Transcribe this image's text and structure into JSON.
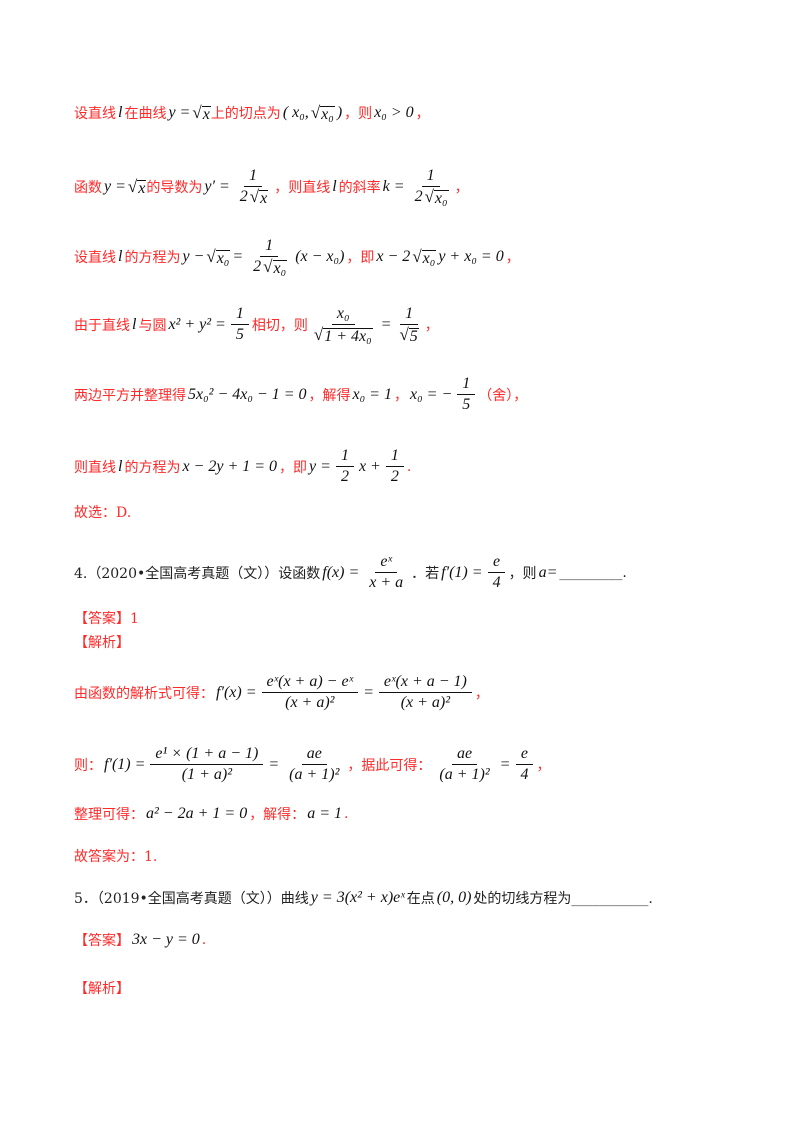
{
  "colors": {
    "solution": "#ff2a2a",
    "question": "#222222"
  },
  "lines": [
    {
      "c": "red",
      "s": [
        {
          "t": "设直线"
        },
        {
          "m": "l"
        },
        {
          "t": "在曲线"
        },
        {
          "m": "y = "
        },
        {
          "sq": "x"
        },
        {
          "t": "上的切点为"
        },
        {
          "m": "("
        },
        {
          "m": "x₀,"
        },
        {
          "sq": "x₀"
        },
        {
          "m": ")"
        },
        {
          "t": "，则"
        },
        {
          "m": "x₀ > 0"
        },
        {
          "t": "，"
        }
      ]
    },
    {
      "c": "red",
      "s": [
        {
          "t": "函数"
        },
        {
          "m": "y = "
        },
        {
          "sq": "x"
        },
        {
          "t": "的导数为"
        },
        {
          "m": "y′ ="
        },
        {
          "fr": [
            [
              {
                "m": "1"
              }
            ],
            [
              {
                "m": "2"
              },
              {
                "sq": "x"
              }
            ]
          ]
        },
        {
          "t": "，则直线"
        },
        {
          "m": "l"
        },
        {
          "t": "的斜率"
        },
        {
          "m": "k ="
        },
        {
          "fr": [
            [
              {
                "m": "1"
              }
            ],
            [
              {
                "m": "2"
              },
              {
                "sq": "x₀"
              }
            ]
          ]
        },
        {
          "t": "，"
        }
      ]
    },
    {
      "c": "red",
      "s": [
        {
          "t": "设直线"
        },
        {
          "m": "l"
        },
        {
          "t": "的方程为"
        },
        {
          "m": "y −"
        },
        {
          "sq": "x₀"
        },
        {
          "m": "="
        },
        {
          "fr": [
            [
              {
                "m": "1"
              }
            ],
            [
              {
                "m": "2"
              },
              {
                "sq": "x₀"
              }
            ]
          ]
        },
        {
          "m": "(x − x₀)"
        },
        {
          "t": "，即"
        },
        {
          "m": "x − 2"
        },
        {
          "sq": "x₀"
        },
        {
          "m": "y + x₀ = 0"
        },
        {
          "t": "，"
        }
      ]
    },
    {
      "c": "red",
      "s": [
        {
          "t": "由于直线"
        },
        {
          "m": "l"
        },
        {
          "t": "与圆"
        },
        {
          "m": "x² + y² ="
        },
        {
          "fr": [
            [
              {
                "m": "1"
              }
            ],
            [
              {
                "m": "5"
              }
            ]
          ]
        },
        {
          "t": "相切，则"
        },
        {
          "fr": [
            [
              {
                "m": "x₀"
              }
            ],
            [
              {
                "sq": "1 + 4x₀"
              }
            ]
          ]
        },
        {
          "m": "="
        },
        {
          "fr": [
            [
              {
                "m": "1"
              }
            ],
            [
              {
                "sq": "5"
              }
            ]
          ]
        },
        {
          "t": "，"
        }
      ]
    },
    {
      "c": "red",
      "s": [
        {
          "t": "两边平方并整理得"
        },
        {
          "m": "5x₀² − 4x₀ − 1 = 0"
        },
        {
          "t": "，解得"
        },
        {
          "m": "x₀ = 1"
        },
        {
          "t": "，"
        },
        {
          "m": "x₀ = −"
        },
        {
          "fr": [
            [
              {
                "m": "1"
              }
            ],
            [
              {
                "m": "5"
              }
            ]
          ]
        },
        {
          "t": "（舍），"
        }
      ]
    },
    {
      "c": "red",
      "s": [
        {
          "t": "则直线"
        },
        {
          "m": "l"
        },
        {
          "t": "的方程为"
        },
        {
          "m": "x − 2y + 1 = 0"
        },
        {
          "t": "，即"
        },
        {
          "m": "y ="
        },
        {
          "fr": [
            [
              {
                "m": "1"
              }
            ],
            [
              {
                "m": "2"
              }
            ]
          ]
        },
        {
          "m": "x +"
        },
        {
          "fr": [
            [
              {
                "m": "1"
              }
            ],
            [
              {
                "m": "2"
              }
            ]
          ]
        },
        {
          "t": "."
        }
      ]
    },
    {
      "c": "red",
      "s": [
        {
          "t": "故选：D."
        }
      ]
    },
    {
      "c": "black",
      "s": [
        {
          "t": "4.（2020•全国高考真题（文））设函数"
        },
        {
          "m": "f(x) ="
        },
        {
          "fr": [
            [
              {
                "m": "eˣ"
              }
            ],
            [
              {
                "m": "x + a"
              }
            ]
          ]
        },
        {
          "t": "．若"
        },
        {
          "m": "f′(1) ="
        },
        {
          "fr": [
            [
              {
                "m": "e"
              }
            ],
            [
              {
                "m": "4"
              }
            ]
          ]
        },
        {
          "t": "，则"
        },
        {
          "m": "a="
        },
        {
          "t": "_________."
        }
      ]
    },
    {
      "c": "red",
      "s": [
        {
          "t": "【答案】1"
        }
      ]
    },
    {
      "c": "red",
      "s": [
        {
          "t": "【解析】"
        }
      ]
    },
    {
      "c": "red",
      "s": [
        {
          "t": "由函数的解析式可得："
        },
        {
          "m": "f′(x) ="
        },
        {
          "fr": [
            [
              {
                "m": "eˣ(x + a) − eˣ"
              }
            ],
            [
              {
                "m": "(x + a)²"
              }
            ]
          ]
        },
        {
          "m": "="
        },
        {
          "fr": [
            [
              {
                "m": "eˣ(x + a − 1)"
              }
            ],
            [
              {
                "m": "(x + a)²"
              }
            ]
          ]
        },
        {
          "t": "，"
        }
      ]
    },
    {
      "c": "red",
      "s": [
        {
          "t": "则："
        },
        {
          "m": "f′(1) ="
        },
        {
          "fr": [
            [
              {
                "m": "e¹ × (1 + a − 1)"
              }
            ],
            [
              {
                "m": "(1 + a)²"
              }
            ]
          ]
        },
        {
          "m": "="
        },
        {
          "fr": [
            [
              {
                "m": "ae"
              }
            ],
            [
              {
                "m": "(a + 1)²"
              }
            ]
          ]
        },
        {
          "t": "，据此可得："
        },
        {
          "fr": [
            [
              {
                "m": "ae"
              }
            ],
            [
              {
                "m": "(a + 1)²"
              }
            ]
          ]
        },
        {
          "m": "="
        },
        {
          "fr": [
            [
              {
                "m": "e"
              }
            ],
            [
              {
                "m": "4"
              }
            ]
          ]
        },
        {
          "t": "，"
        }
      ]
    },
    {
      "c": "red",
      "s": [
        {
          "t": "整理可得："
        },
        {
          "m": "a² − 2a + 1 = 0"
        },
        {
          "t": "，解得："
        },
        {
          "m": "a = 1"
        },
        {
          "t": "."
        }
      ]
    },
    {
      "c": "red",
      "s": [
        {
          "t": "故答案为：1."
        }
      ]
    },
    {
      "c": "black",
      "s": [
        {
          "t": "5．（2019•全国高考真题（文））曲线"
        },
        {
          "m": "y = 3(x² + x)eˣ"
        },
        {
          "t": "在点"
        },
        {
          "m": "(0, 0)"
        },
        {
          "t": "处的切线方程为___________."
        }
      ]
    },
    {
      "c": "red",
      "s": [
        {
          "t": "【答案】"
        },
        {
          "m": "3x − y = 0"
        },
        {
          "t": "."
        }
      ]
    },
    {
      "c": "red",
      "s": [
        {
          "t": "【解析】"
        }
      ]
    }
  ]
}
